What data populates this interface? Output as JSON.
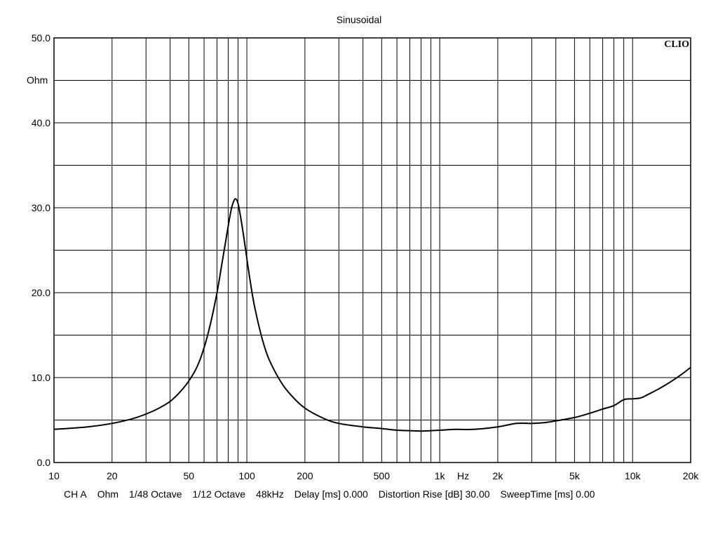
{
  "chart_data": {
    "type": "line",
    "title": "Sinusoidal",
    "brand": "CLIO",
    "ylabel": "Ohm",
    "xlabel": "Hz",
    "xscale": "log",
    "xlim": [
      10,
      20000
    ],
    "ylim": [
      0,
      50
    ],
    "grid": true,
    "y_major_ticks": [
      0,
      10,
      20,
      30,
      40,
      50
    ],
    "y_tick_labels": [
      "0.0",
      "10.0",
      "20.0",
      "30.0",
      "40.0",
      "50.0"
    ],
    "y_minor_gridlines": [
      5,
      15,
      25,
      35,
      45
    ],
    "x_tick_values": [
      10,
      20,
      50,
      100,
      200,
      500,
      1000,
      2000,
      5000,
      10000,
      20000
    ],
    "x_tick_labels": [
      "10",
      "20",
      "50",
      "100",
      "200",
      "500",
      "1k",
      "2k",
      "5k",
      "10k",
      "20k"
    ],
    "series": [
      {
        "x": [
          10,
          15,
          20,
          25,
          30,
          35,
          40,
          45,
          50,
          55,
          60,
          65,
          70,
          75,
          80,
          83,
          86,
          88,
          90,
          93,
          96,
          100,
          105,
          110,
          120,
          130,
          150,
          170,
          200,
          250,
          300,
          400,
          500,
          600,
          700,
          800,
          900,
          1000,
          1200,
          1500,
          2000,
          2500,
          3000,
          3500,
          4000,
          5000,
          6000,
          7000,
          8000,
          9000,
          10000,
          11000,
          12000,
          14000,
          16000,
          18000,
          20000
        ],
        "values": [
          3.9,
          4.2,
          4.6,
          5.1,
          5.7,
          6.4,
          7.2,
          8.3,
          9.6,
          11.2,
          13.5,
          16.5,
          20.0,
          24.0,
          27.8,
          29.8,
          30.9,
          31.0,
          30.5,
          28.8,
          26.8,
          24.0,
          20.8,
          18.2,
          14.6,
          12.2,
          9.5,
          7.9,
          6.4,
          5.2,
          4.6,
          4.2,
          4.0,
          3.8,
          3.75,
          3.7,
          3.75,
          3.8,
          3.9,
          3.9,
          4.2,
          4.6,
          4.6,
          4.7,
          4.9,
          5.3,
          5.8,
          6.3,
          6.7,
          7.4,
          7.5,
          7.6,
          8.0,
          8.8,
          9.6,
          10.4,
          11.2
        ]
      }
    ],
    "color": "#000000"
  },
  "footer": {
    "channel": "CH A",
    "unit": "Ohm",
    "smoothing": "1/48 Octave",
    "resolution": "1/12 Octave",
    "sample_rate": "48kHz",
    "delay": "Delay [ms] 0.000",
    "distortion_rise": "Distortion Rise [dB] 30.00",
    "sweep_time": "SweepTime [ms] 0.00"
  }
}
